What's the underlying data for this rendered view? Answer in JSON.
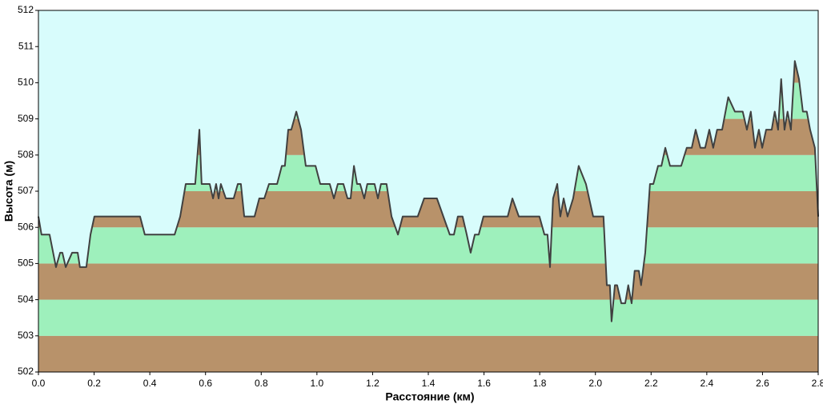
{
  "chart_data": {
    "type": "area",
    "x_label": "Расстояние  (км)",
    "y_label": "Высота (м)",
    "xlim": [
      0,
      2.8
    ],
    "xticks": [
      {
        "value": 0,
        "label": "0.0"
      },
      0.2,
      0.4,
      0.6,
      0.8,
      {
        "value": 1,
        "label": "1.0"
      },
      1.2,
      1.4,
      1.6,
      1.8,
      {
        "value": 2,
        "label": "2.0"
      },
      2.2,
      2.4,
      2.6,
      2.8
    ],
    "ylim": [
      502,
      512
    ],
    "yticks": [
      502,
      503,
      504,
      505,
      506,
      507,
      508,
      509,
      510,
      511,
      512
    ],
    "background": "#d8fcfc",
    "band_colors": [
      "#b8926a",
      "#9ef0bc"
    ],
    "line_color": "#404040",
    "x": [
      0,
      0.011,
      0.04,
      0.063,
      0.078,
      0.086,
      0.098,
      0.121,
      0.141,
      0.149,
      0.172,
      0.187,
      0.201,
      0.365,
      0.382,
      0.489,
      0.509,
      0.529,
      0.563,
      0.578,
      0.586,
      0.615,
      0.627,
      0.638,
      0.647,
      0.655,
      0.673,
      0.701,
      0.716,
      0.727,
      0.739,
      0.776,
      0.793,
      0.811,
      0.828,
      0.857,
      0.874,
      0.885,
      0.897,
      0.908,
      0.926,
      0.943,
      0.96,
      0.995,
      1.012,
      1.046,
      1.061,
      1.075,
      1.095,
      1.11,
      1.121,
      1.133,
      1.144,
      1.155,
      1.17,
      1.181,
      1.207,
      1.219,
      1.23,
      1.25,
      1.268,
      1.291,
      1.308,
      1.362,
      1.385,
      1.431,
      1.454,
      1.477,
      1.492,
      1.506,
      1.523,
      1.538,
      1.552,
      1.567,
      1.581,
      1.598,
      1.685,
      1.702,
      1.725,
      1.799,
      1.817,
      1.828,
      1.837,
      1.848,
      1.863,
      1.874,
      1.886,
      1.9,
      1.92,
      1.94,
      1.966,
      1.992,
      2.029,
      2.041,
      2.052,
      2.058,
      2.07,
      2.078,
      2.093,
      2.107,
      2.118,
      2.13,
      2.141,
      2.156,
      2.164,
      2.179,
      2.196,
      2.208,
      2.225,
      2.237,
      2.251,
      2.268,
      2.308,
      2.328,
      2.346,
      2.36,
      2.377,
      2.394,
      2.409,
      2.423,
      2.437,
      2.455,
      2.477,
      2.501,
      2.529,
      2.544,
      2.558,
      2.573,
      2.587,
      2.599,
      2.613,
      2.633,
      2.644,
      2.656,
      2.667,
      2.679,
      2.69,
      2.702,
      2.716,
      2.731,
      2.745,
      2.759,
      2.771,
      2.788,
      2.8
    ],
    "series": [
      {
        "name": "Высота",
        "values": [
          506.3,
          505.8,
          505.8,
          504.9,
          505.3,
          505.3,
          504.9,
          505.3,
          505.3,
          504.9,
          504.9,
          505.8,
          506.3,
          506.3,
          505.8,
          505.8,
          506.3,
          507.2,
          507.2,
          508.7,
          507.2,
          507.2,
          506.8,
          507.2,
          506.8,
          507.2,
          506.8,
          506.8,
          507.2,
          507.2,
          506.3,
          506.3,
          506.8,
          506.8,
          507.2,
          507.2,
          507.7,
          507.7,
          508.7,
          508.7,
          509.2,
          508.7,
          507.7,
          507.7,
          507.2,
          507.2,
          506.8,
          507.2,
          507.2,
          506.8,
          506.8,
          507.7,
          507.2,
          507.2,
          506.8,
          507.2,
          507.2,
          506.8,
          507.2,
          507.2,
          506.3,
          505.8,
          506.3,
          506.3,
          506.8,
          506.8,
          506.3,
          505.8,
          505.8,
          506.3,
          506.3,
          505.8,
          505.3,
          505.8,
          505.8,
          506.3,
          506.3,
          506.8,
          506.3,
          506.3,
          505.8,
          505.8,
          504.9,
          506.8,
          507.2,
          506.3,
          506.8,
          506.3,
          506.8,
          507.7,
          507.2,
          506.3,
          506.3,
          504.4,
          504.4,
          503.4,
          504.4,
          504.4,
          503.9,
          503.9,
          504.4,
          503.9,
          504.8,
          504.8,
          504.4,
          505.3,
          507.2,
          507.2,
          507.7,
          507.7,
          508.2,
          507.7,
          507.7,
          508.2,
          508.2,
          508.7,
          508.2,
          508.2,
          508.7,
          508.2,
          508.7,
          508.7,
          509.6,
          509.2,
          509.2,
          508.7,
          509.2,
          508.2,
          508.7,
          508.2,
          508.7,
          508.7,
          509.2,
          508.7,
          510.1,
          508.7,
          509.2,
          508.7,
          510.6,
          510.1,
          509.2,
          509.2,
          508.7,
          508.2,
          506.3
        ]
      }
    ]
  }
}
